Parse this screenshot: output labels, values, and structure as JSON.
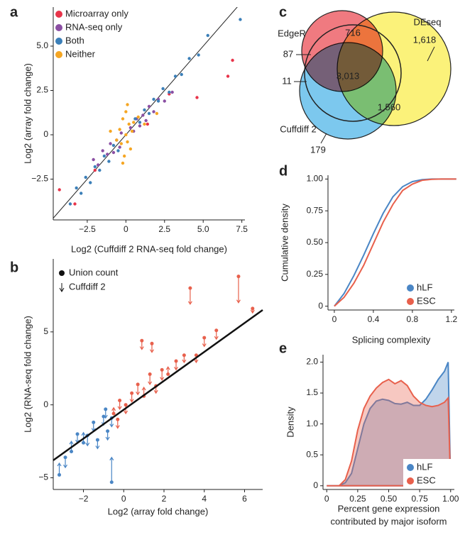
{
  "chart_data": [
    {
      "type": "scatter",
      "panel": "a",
      "xlabel": "Log2 (Cuffdiff 2 RNA-seq fold change)",
      "ylabel": "Log2 (array fold change)",
      "xlim": [
        -4.7,
        7.7
      ],
      "ylim": [
        -4.8,
        7.2
      ],
      "xticks": [
        {
          "value": -2.5,
          "label": "−2.5"
        },
        0,
        {
          "value": 2.5,
          "label": "2.5"
        },
        {
          "value": 5.0,
          "label": "5.0"
        },
        {
          "value": 7.5,
          "label": "7.5"
        }
      ],
      "yticks": [
        {
          "value": -2.5,
          "label": "−2.5"
        },
        0,
        {
          "value": 2.5,
          "label": "2.5"
        },
        {
          "value": 5.0,
          "label": "5.0"
        }
      ],
      "legend": "upper left",
      "series": [
        {
          "name": "Microarray only",
          "color": "#e8344a",
          "x": [
            -4.3,
            -3.3,
            1.4,
            2.8,
            4.6,
            6.6,
            6.9,
            -2.0
          ],
          "values": [
            -3.1,
            -3.9,
            0.6,
            2.3,
            2.1,
            3.3,
            4.2,
            -2.0
          ]
        },
        {
          "name": "RNA-seq only",
          "color": "#8b4fa3",
          "x": [
            -2.1,
            -1.8,
            -1.5,
            -1.2,
            -1.0,
            -0.8,
            -0.6,
            -0.4,
            -0.3,
            0.3,
            0.5,
            0.7,
            0.9,
            1.1,
            1.3,
            1.5,
            1.8,
            2.1,
            2.5,
            3.0
          ],
          "values": [
            -1.4,
            -1.7,
            -0.9,
            -1.1,
            -0.5,
            -1.0,
            -0.3,
            -0.7,
            0.1,
            0.4,
            0.2,
            0.9,
            0.5,
            1.1,
            0.8,
            1.6,
            1.3,
            2.0,
            1.9,
            2.4
          ]
        },
        {
          "name": "Both",
          "color": "#3b7fb8",
          "x": [
            -3.6,
            -3.2,
            -2.9,
            -2.6,
            -2.3,
            -2.0,
            -1.7,
            -1.4,
            -1.1,
            -0.8,
            -0.5,
            0.6,
            0.9,
            1.2,
            1.5,
            1.8,
            2.1,
            2.4,
            2.8,
            3.2,
            3.6,
            4.1,
            4.7,
            5.3,
            7.4
          ],
          "values": [
            -3.9,
            -3.0,
            -3.3,
            -2.4,
            -2.7,
            -1.8,
            -2.0,
            -1.2,
            -1.5,
            -0.6,
            -0.9,
            0.9,
            0.7,
            1.4,
            1.2,
            2.0,
            1.9,
            2.6,
            2.4,
            3.3,
            3.4,
            4.3,
            4.5,
            5.6,
            6.5
          ]
        },
        {
          "name": "Neither",
          "color": "#f5a623",
          "x": [
            -0.4,
            -0.3,
            -0.2,
            -0.1,
            0,
            0,
            0.1,
            0.2,
            0.3,
            0.4,
            -0.2,
            0.1,
            0.5,
            -0.6,
            0.8,
            1.2,
            2.0,
            -1.0
          ],
          "values": [
            0.3,
            -0.5,
            0.9,
            -1.2,
            0.0,
            1.3,
            -0.4,
            0.6,
            -0.8,
            0.2,
            -1.6,
            1.7,
            0.7,
            -0.3,
            1.0,
            0.6,
            1.2,
            0.2
          ]
        }
      ]
    },
    {
      "type": "scatter",
      "panel": "b",
      "xlabel": "Log2 (array fold change)",
      "ylabel": "Log2 (RNA-seq fold change)",
      "xlim": [
        -3.5,
        6.9
      ],
      "ylim": [
        -5.8,
        10
      ],
      "xticks": [
        {
          "value": -2,
          "label": "−2"
        },
        0,
        2,
        4,
        6
      ],
      "yticks": [
        {
          "value": -5,
          "label": "−5"
        },
        0,
        5
      ],
      "legend": "upper left",
      "point_label": "Union count",
      "arrow_label": "Cuffdiff 2",
      "fit": {
        "x": [
          -3.5,
          6.9
        ],
        "values": [
          -3.8,
          6.5
        ]
      },
      "series": [
        {
          "color": "#4a86c5",
          "x": [
            -3.2,
            -2.9,
            -2.6,
            -2.3,
            -2.0,
            -1.8,
            -1.5,
            -1.3,
            -1.0,
            -0.8,
            -0.6,
            -0.9,
            -0.6
          ],
          "values": [
            -4.8,
            -3.6,
            -3.2,
            -2.0,
            -2.6,
            -2.1,
            -1.2,
            -2.4,
            -0.8,
            -1.8,
            -0.9,
            -0.3,
            -5.3
          ],
          "cuffdiff_values": [
            -4.0,
            -4.3,
            -2.5,
            -2.6,
            -1.9,
            -2.8,
            -1.8,
            -3.0,
            -1.4,
            -2.4,
            -1.5,
            -0.9,
            -3.6
          ]
        },
        {
          "color": "#e8604c",
          "x": [
            -0.5,
            -0.2,
            0.1,
            0.4,
            0.7,
            1.0,
            1.3,
            1.6,
            1.9,
            2.2,
            2.6,
            3.0,
            3.3,
            3.6,
            4.0,
            4.6,
            5.7,
            6.4,
            -0.3,
            0.9,
            1.4
          ],
          "values": [
            -0.6,
            0.3,
            0.0,
            0.8,
            1.4,
            0.6,
            2.1,
            1.3,
            2.4,
            2.1,
            3.0,
            3.4,
            8.0,
            3.4,
            4.6,
            5.1,
            8.8,
            6.6,
            -1.0,
            4.4,
            4.2
          ],
          "cuffdiff_values": [
            -0.2,
            -0.3,
            -0.6,
            0.2,
            0.7,
            1.2,
            1.4,
            0.8,
            1.7,
            2.6,
            2.4,
            2.9,
            6.9,
            2.9,
            4.0,
            4.5,
            7.0,
            6.3,
            -1.6,
            3.8,
            3.6
          ]
        }
      ]
    },
    {
      "type": "venn",
      "panel": "c",
      "sets": [
        {
          "name": "DEseq",
          "color": "#fbf27a"
        },
        {
          "name": "Cuffdiff 2",
          "color": "#7cc8ee"
        },
        {
          "name": "EdgeR",
          "color": "#f07a80"
        }
      ],
      "values": [
        716,
        1618,
        87,
        11,
        3013,
        1560,
        179
      ],
      "value_labels": [
        "716",
        "1,618",
        "87",
        "11",
        "3,013",
        "1,560",
        "179"
      ]
    },
    {
      "type": "line",
      "panel": "d",
      "xlabel": "Splicing complexity",
      "ylabel": "Cumulative density",
      "xlim": [
        -0.065,
        1.23
      ],
      "ylim": [
        -0.03,
        1.03
      ],
      "xticks": [
        0,
        0.4,
        0.8,
        1.2
      ],
      "yticks": [
        0,
        {
          "value": 0.25,
          "label": "0.25"
        },
        {
          "value": 0.5,
          "label": "0.50"
        },
        {
          "value": 0.75,
          "label": "0.75"
        },
        {
          "value": 1.0,
          "label": "1.00"
        }
      ],
      "legend": "lower right",
      "x": [
        0,
        0.1,
        0.2,
        0.3,
        0.4,
        0.5,
        0.6,
        0.7,
        0.8,
        0.9,
        1.0,
        1.1,
        1.25
      ],
      "series": [
        {
          "name": "hLF",
          "color": "#4a86c5",
          "values": [
            0,
            0.1,
            0.24,
            0.4,
            0.57,
            0.73,
            0.86,
            0.94,
            0.98,
            0.995,
            1.0,
            1.0,
            1.0
          ]
        },
        {
          "name": "ESC",
          "color": "#e8604c",
          "values": [
            0,
            0.07,
            0.18,
            0.32,
            0.49,
            0.66,
            0.8,
            0.91,
            0.96,
            0.99,
            0.998,
            1.0,
            1.0
          ]
        }
      ]
    },
    {
      "type": "area",
      "panel": "e",
      "xlabel": [
        "Percent gene expression",
        "contributed by major isoform"
      ],
      "ylabel": "Density",
      "xlim": [
        -0.03,
        1.03
      ],
      "ylim": [
        -0.06,
        2.12
      ],
      "xticks": [
        0,
        {
          "value": 0.25,
          "label": "0.25"
        },
        {
          "value": 0.5,
          "label": "0.50"
        },
        {
          "value": 0.75,
          "label": "0.75"
        },
        {
          "value": 1.0,
          "label": "1.00"
        }
      ],
      "yticks": [
        0,
        {
          "value": 0.5,
          "label": "0.5"
        },
        {
          "value": 1.0,
          "label": "1.0"
        },
        {
          "value": 1.5,
          "label": "1.5"
        },
        {
          "value": 2.0,
          "label": "2.0"
        }
      ],
      "legend": "lower right",
      "x": [
        0,
        0.1,
        0.15,
        0.2,
        0.25,
        0.3,
        0.35,
        0.4,
        0.45,
        0.5,
        0.55,
        0.6,
        0.65,
        0.7,
        0.75,
        0.8,
        0.85,
        0.9,
        0.95,
        0.98,
        1.0
      ],
      "series": [
        {
          "name": "hLF",
          "color": "#4a86c5",
          "values": [
            0,
            0,
            0.05,
            0.2,
            0.6,
            1.0,
            1.25,
            1.37,
            1.4,
            1.38,
            1.33,
            1.32,
            1.35,
            1.3,
            1.3,
            1.4,
            1.55,
            1.72,
            1.85,
            2.0,
            0
          ]
        },
        {
          "name": "ESC",
          "color": "#e8604c",
          "values": [
            0,
            0,
            0.1,
            0.4,
            0.9,
            1.25,
            1.45,
            1.58,
            1.67,
            1.72,
            1.65,
            1.7,
            1.62,
            1.45,
            1.35,
            1.3,
            1.28,
            1.3,
            1.35,
            1.42,
            0
          ]
        }
      ]
    }
  ]
}
